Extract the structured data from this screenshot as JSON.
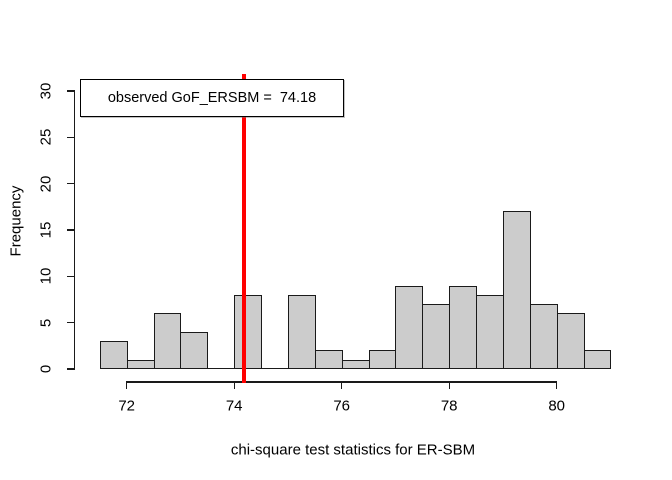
{
  "chart_data": {
    "type": "bar",
    "title": "",
    "xlabel": "chi-square test statistics for ER-SBM",
    "ylabel": "Frequency",
    "bin_start": 71.5,
    "bin_width": 0.5,
    "counts": [
      3,
      1,
      6,
      4,
      0,
      8,
      0,
      8,
      2,
      1,
      2,
      9,
      7,
      9,
      8,
      17,
      7,
      6,
      2
    ],
    "bin_edges": [
      71.5,
      72,
      72.5,
      73,
      73.5,
      74,
      74.5,
      75,
      75.5,
      76,
      76.5,
      77,
      77.5,
      78,
      78.5,
      79,
      79.5,
      80,
      80.5,
      81
    ],
    "x_ticks": [
      72,
      74,
      76,
      78,
      80
    ],
    "y_ticks": [
      0,
      5,
      10,
      15,
      20,
      25,
      30
    ],
    "xlim": [
      71.5,
      81
    ],
    "ylim": [
      0,
      30
    ],
    "grid": false,
    "bar_fill": "#cccccc",
    "bar_border": "#1a1a1a",
    "vline": {
      "x": 74.18,
      "color": "#ff0000",
      "label": "observed GoF_ERSBM =  74.18"
    },
    "legend_position": "top-left"
  }
}
